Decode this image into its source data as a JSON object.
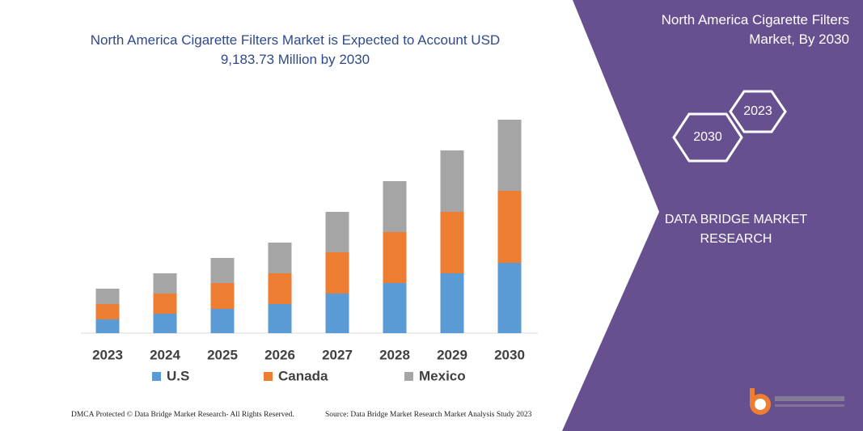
{
  "chart_data": {
    "type": "bar",
    "stacked": true,
    "title": "North America Cigarette Filters Market is Expected to Account USD 9,183.73 Million by 2030",
    "categories": [
      "2023",
      "2024",
      "2025",
      "2026",
      "2027",
      "2028",
      "2029",
      "2030"
    ],
    "series": [
      {
        "name": "U.S",
        "color": "#5b9bd5",
        "values": [
          17,
          24,
          30,
          36,
          49,
          62,
          74,
          87
        ]
      },
      {
        "name": "Canada",
        "color": "#ed7d31",
        "values": [
          19,
          25,
          32,
          38,
          51,
          63,
          76,
          89
        ]
      },
      {
        "name": "Mexico",
        "color": "#a5a5a5",
        "values": [
          19,
          25,
          31,
          38,
          50,
          63,
          76,
          88
        ]
      }
    ],
    "ylim": [
      0,
      300
    ]
  },
  "panel": {
    "title": "North America Cigarette Filters Market, By 2030",
    "hexagons": [
      "2023",
      "2030"
    ],
    "brand": "DATA BRIDGE MARKET RESEARCH"
  },
  "footer": {
    "dmca": "DMCA Protected © Data Bridge Market Research- All Rights Reserved.",
    "source": "Source: Data Bridge Market Research  Market Analysis Study 2023"
  }
}
